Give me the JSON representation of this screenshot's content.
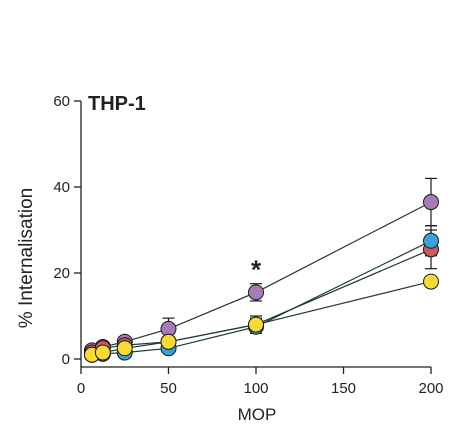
{
  "chart_data": {
    "type": "line",
    "title": "THP-1",
    "xlabel": "MOP",
    "ylabel": "% Internalisation",
    "xlim": [
      0,
      200
    ],
    "ylim": [
      0,
      60
    ],
    "xticks": [
      0,
      50,
      100,
      150,
      200
    ],
    "yticks": [
      0,
      20,
      40,
      60
    ],
    "grid": false,
    "annotation": {
      "text": "*",
      "x": 100,
      "y": 21
    },
    "x": [
      6.25,
      12.5,
      25,
      50,
      100,
      200
    ],
    "series": [
      {
        "color": "#a77bb5",
        "values": [
          2.0,
          2.8,
          4.0,
          7.0,
          15.5,
          36.5
        ],
        "err": [
          0.5,
          0.8,
          1.0,
          2.5,
          2.0,
          5.5
        ]
      },
      {
        "color": "#cc5a5c",
        "values": [
          1.5,
          2.5,
          3.2,
          4.0,
          8.0,
          25.5
        ],
        "err": [
          0.5,
          0.6,
          0.8,
          1.2,
          1.5,
          4.5
        ]
      },
      {
        "color": "#3aa0da",
        "values": [
          1.0,
          1.2,
          1.5,
          2.5,
          7.5,
          27.5
        ],
        "err": [
          0.4,
          0.5,
          0.6,
          0.8,
          1.5,
          3.5
        ]
      },
      {
        "color": "#f6db34",
        "values": [
          1.0,
          1.5,
          2.5,
          4.0,
          8.0,
          18.0
        ],
        "err": [
          0.4,
          0.5,
          0.8,
          1.0,
          2.0,
          1.0
        ]
      }
    ]
  }
}
